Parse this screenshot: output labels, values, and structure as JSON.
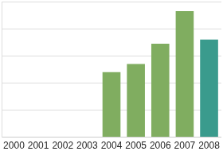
{
  "chart_data": {
    "type": "bar",
    "categories": [
      "2000",
      "2001",
      "2002",
      "2003",
      "2004",
      "2005",
      "2006",
      "2007",
      "2008"
    ],
    "values": [
      null,
      null,
      null,
      null,
      2.4,
      2.7,
      3.45,
      4.65,
      3.6
    ],
    "colors": [
      "#80ad60",
      "#80ad60",
      "#80ad60",
      "#80ad60",
      "#80ad60",
      "#80ad60",
      "#80ad60",
      "#80ad60",
      "#3a9b8d"
    ],
    "ylim": [
      0,
      5
    ],
    "yticks": [
      0,
      1,
      2,
      3,
      4,
      5
    ],
    "grid": true,
    "tick_labels": "x"
  }
}
